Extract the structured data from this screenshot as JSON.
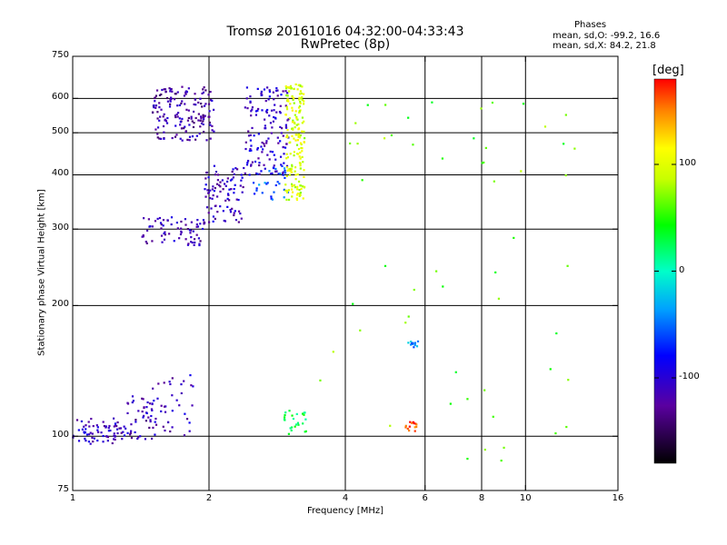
{
  "header": {
    "title_line1": "Tromsø 20161016 04:32:00-04:33:43",
    "title_line2": "RwPretec (8p)"
  },
  "phase_box": {
    "heading": "Phases",
    "line_o": "mean, sd,O: -99.2, 16.6",
    "line_x": "mean, sd,X:  84.2, 21.8"
  },
  "chart_data": {
    "type": "scatter",
    "xlabel": "Frequency [MHz]",
    "ylabel": "Stationary phase Virtual Height [km]",
    "xscale": "log",
    "yscale": "log",
    "xlim": [
      1,
      16
    ],
    "ylim": [
      75,
      750
    ],
    "x_ticks": [
      1,
      2,
      4,
      6,
      8,
      10,
      16
    ],
    "x_tick_labels": [
      "1",
      "2",
      "4",
      "6",
      "8",
      "10",
      "16"
    ],
    "x_gridlines": [
      2,
      4,
      6,
      8,
      10
    ],
    "y_ticks": [
      75,
      100,
      200,
      300,
      400,
      500,
      600,
      750
    ],
    "y_tick_labels": [
      "75",
      "100",
      "200",
      "300",
      "400",
      "500",
      "600",
      "750"
    ],
    "y_gridlines": [
      100,
      200,
      300,
      400,
      500,
      600
    ],
    "grid": true,
    "colorbar": {
      "label": "[deg]",
      "range": [
        -180,
        180
      ],
      "ticks": [
        100,
        0,
        -100
      ],
      "tick_labels": [
        "100",
        "0",
        "-100"
      ]
    },
    "clusters": [
      {
        "x": [
          1.0,
          1.3
        ],
        "y": [
          96,
          110
        ],
        "phase": -110,
        "n": 70
      },
      {
        "x": [
          1.3,
          1.5
        ],
        "y": [
          98,
          125
        ],
        "phase": -115,
        "n": 45
      },
      {
        "x": [
          1.5,
          1.85
        ],
        "y": [
          100,
          140
        ],
        "phase": -110,
        "n": 40
      },
      {
        "x": [
          1.42,
          1.95
        ],
        "y": [
          275,
          320
        ],
        "phase": -115,
        "n": 70
      },
      {
        "x": [
          1.95,
          2.4
        ],
        "y": [
          310,
          420
        ],
        "phase": -110,
        "n": 90
      },
      {
        "x": [
          1.5,
          2.05
        ],
        "y": [
          480,
          640
        ],
        "phase": -120,
        "n": 160
      },
      {
        "x": [
          2.4,
          3.0
        ],
        "y": [
          400,
          640
        ],
        "phase": -105,
        "n": 140
      },
      {
        "x": [
          2.5,
          3.0
        ],
        "y": [
          350,
          420
        ],
        "phase": -55,
        "n": 30
      },
      {
        "x": [
          2.95,
          3.25
        ],
        "y": [
          350,
          650
        ],
        "phase": 95,
        "n": 180
      },
      {
        "x": [
          2.9,
          3.3
        ],
        "y": [
          100,
          115
        ],
        "phase": 30,
        "n": 25
      },
      {
        "x": [
          5.4,
          5.75
        ],
        "y": [
          102,
          108
        ],
        "phase": 165,
        "n": 15
      },
      {
        "x": [
          5.5,
          5.8
        ],
        "y": [
          160,
          166
        ],
        "phase": -40,
        "n": 12
      },
      {
        "x": [
          3.5,
          13.0
        ],
        "y": [
          85,
          620
        ],
        "phase": 60,
        "n": 55
      }
    ]
  }
}
